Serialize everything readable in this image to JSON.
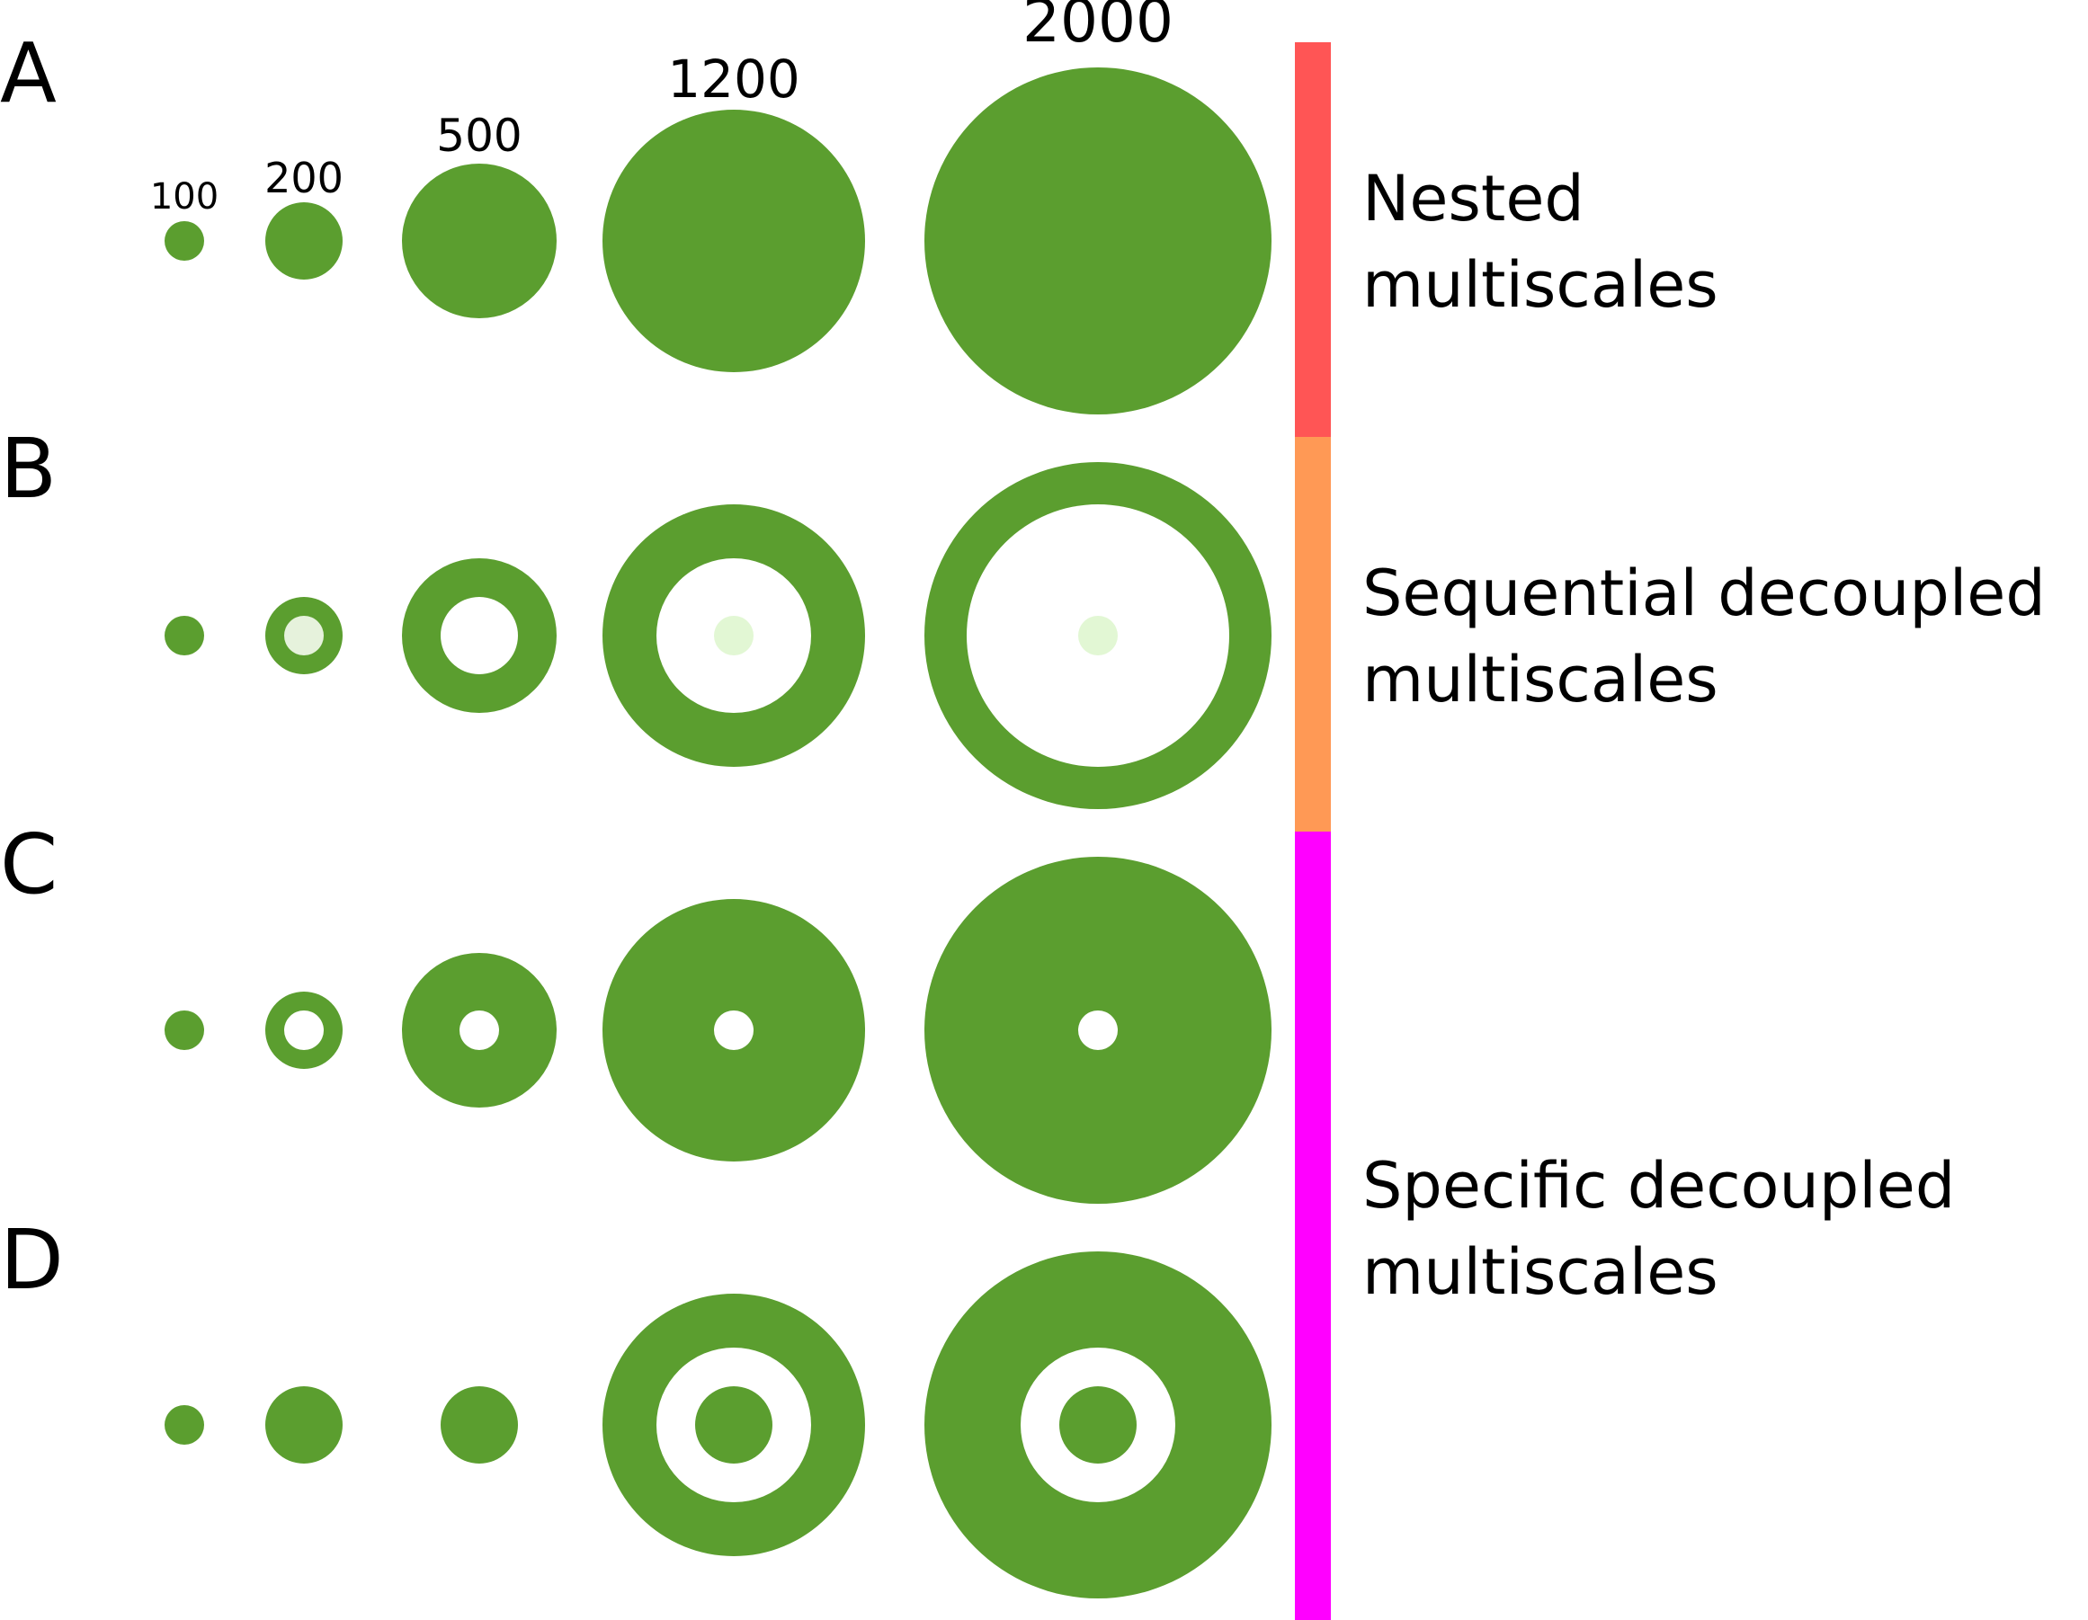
{
  "colors": {
    "disc": "#5b9e2f",
    "hole": "#ffffff",
    "hole_faint": "#e6f2dc",
    "hole_faint2": "#e2f7d4",
    "bar_nested": "#ff5555",
    "bar_sequential": "#ff9955",
    "bar_specific": "#ff00ff",
    "text": "#000000"
  },
  "scale_labels": [
    "100",
    "200",
    "500",
    "1200",
    "2000"
  ],
  "rows": [
    {
      "letter": "A"
    },
    {
      "letter": "B"
    },
    {
      "letter": "C"
    },
    {
      "letter": "D"
    }
  ],
  "legend": {
    "nested": {
      "line1": "Nested",
      "line2": "multiscales"
    },
    "sequential": {
      "line1": "Sequential decoupled",
      "line2": "multiscales"
    },
    "specific": {
      "line1": "Specific decoupled",
      "line2": "multiscales"
    }
  }
}
